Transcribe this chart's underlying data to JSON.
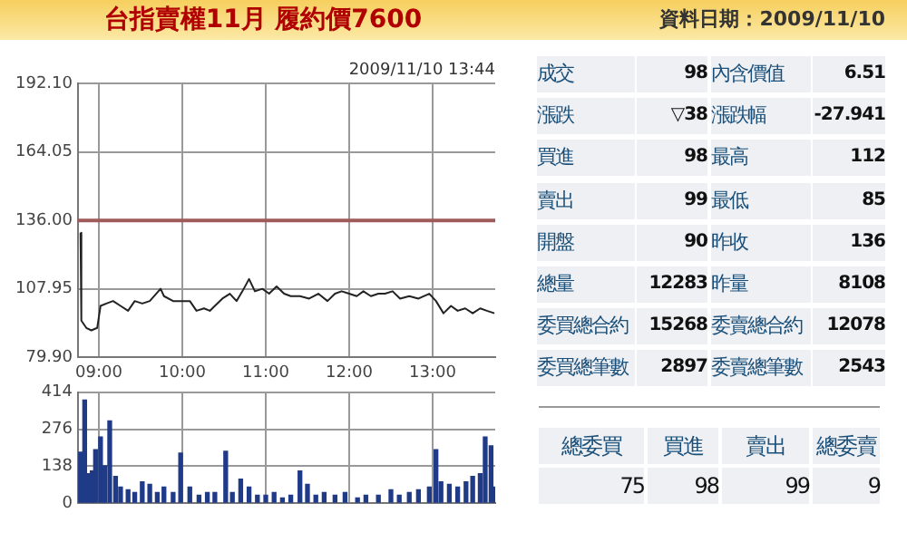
{
  "chart_data": [
    {
      "type": "line",
      "title": "台指賣權11月 履約價7600",
      "annotations": [
        "2009/11/10 13:44"
      ],
      "grid": true,
      "marker": "none",
      "legend": false,
      "xlim": [
        8.75,
        13.75
      ],
      "xticks": [
        {
          "value": 9,
          "label": "09:00"
        },
        {
          "value": 10,
          "label": "10:00"
        },
        {
          "value": 11,
          "label": "11:00"
        },
        {
          "value": 12,
          "label": "12:00"
        },
        {
          "value": 13,
          "label": "13:00"
        }
      ],
      "ylim": [
        79.9,
        192.1
      ],
      "yticks": [
        {
          "value": 79.9,
          "label": "79.90"
        },
        107.95,
        {
          "value": 136,
          "label": "136.00"
        },
        164.05,
        {
          "value": 192.1,
          "label": "192.10"
        }
      ],
      "ref_lines": [
        {
          "axis": "y",
          "value": 136,
          "color": "#a05a5a"
        }
      ],
      "series": [
        {
          "color": "#222222",
          "x": [
            8.78,
            8.79,
            8.85,
            8.91,
            8.98,
            9.02,
            9.09,
            9.17,
            9.26,
            9.35,
            9.43,
            9.52,
            9.61,
            9.74,
            9.78,
            9.89,
            10.0,
            10.09,
            10.17,
            10.26,
            10.33,
            10.39,
            10.48,
            10.57,
            10.65,
            10.72,
            10.8,
            10.87,
            10.96,
            11.04,
            11.13,
            11.22,
            11.3,
            11.41,
            11.52,
            11.63,
            11.74,
            11.83,
            11.91,
            12.0,
            12.09,
            12.17,
            12.26,
            12.35,
            12.43,
            12.52,
            12.61,
            12.72,
            12.83,
            12.96,
            13.04,
            13.13,
            13.22,
            13.3,
            13.39,
            13.48,
            13.57,
            13.65,
            13.74
          ],
          "values": [
            131,
            95,
            92,
            91,
            92,
            101,
            102,
            103,
            101,
            99,
            103,
            102,
            103,
            108,
            105,
            103,
            103,
            103,
            99,
            100,
            99,
            101,
            104,
            106,
            103,
            107,
            112,
            107,
            108,
            106,
            109,
            106,
            105,
            105,
            104,
            106,
            103,
            106,
            107,
            106,
            105,
            107,
            105,
            106,
            106,
            107,
            104,
            105,
            104,
            106,
            103,
            98,
            101,
            99,
            100,
            98,
            100,
            99,
            98
          ]
        }
      ]
    },
    {
      "type": "bar",
      "grid": true,
      "legend": false,
      "tick_labels": "y",
      "xlim": [
        8.75,
        13.75
      ],
      "xticks": [
        {
          "value": 9,
          "label": null
        },
        {
          "value": 10,
          "label": null
        },
        {
          "value": 11,
          "label": null
        },
        {
          "value": 12,
          "label": null
        },
        {
          "value": 13,
          "label": null
        }
      ],
      "ylim": [
        0,
        414
      ],
      "yticks": [
        0,
        138,
        276,
        414
      ],
      "series": [
        {
          "color": "#1f3a86",
          "x": [
            8.78,
            8.83,
            8.88,
            8.92,
            8.96,
            9.02,
            9.07,
            9.13,
            9.2,
            9.26,
            9.35,
            9.43,
            9.52,
            9.61,
            9.7,
            9.78,
            9.89,
            9.98,
            10.09,
            10.2,
            10.3,
            10.39,
            10.52,
            10.6,
            10.7,
            10.8,
            10.9,
            11.0,
            11.1,
            11.2,
            11.3,
            11.41,
            11.5,
            11.6,
            11.7,
            11.83,
            11.95,
            12.1,
            12.2,
            12.35,
            12.5,
            12.6,
            12.72,
            12.83,
            12.96,
            13.04,
            13.1,
            13.2,
            13.3,
            13.4,
            13.48,
            13.57,
            13.63,
            13.7,
            13.74
          ],
          "values": [
            190,
            385,
            110,
            120,
            200,
            247,
            140,
            307,
            100,
            60,
            50,
            40,
            80,
            70,
            40,
            60,
            40,
            187,
            60,
            30,
            40,
            40,
            194,
            40,
            90,
            60,
            30,
            30,
            40,
            20,
            30,
            120,
            70,
            30,
            40,
            30,
            40,
            20,
            30,
            30,
            50,
            30,
            40,
            50,
            60,
            200,
            80,
            70,
            60,
            80,
            100,
            110,
            247,
            214,
            60
          ]
        }
      ]
    },
    {
      "type": "other",
      "title": "資料日期：2009/11/10",
      "annotations": [
        "成交",
        "98",
        "內含價值",
        "6.51",
        "漲跌",
        "▽38",
        "漲跌幅",
        "-27.941",
        "買進",
        "98",
        "最高",
        "112",
        "賣出",
        "99",
        "最低",
        "85",
        "開盤",
        "90",
        "昨收",
        "136",
        "總量",
        "12283",
        "昨量",
        "8108",
        "委買總合約",
        "15268",
        "委賣總合約",
        "12078",
        "委買總筆數",
        "2897",
        "委賣總筆數",
        "2543",
        "總委買",
        "買進",
        "賣出",
        "總委賣",
        "75",
        "98",
        "99",
        "9"
      ]
    }
  ]
}
